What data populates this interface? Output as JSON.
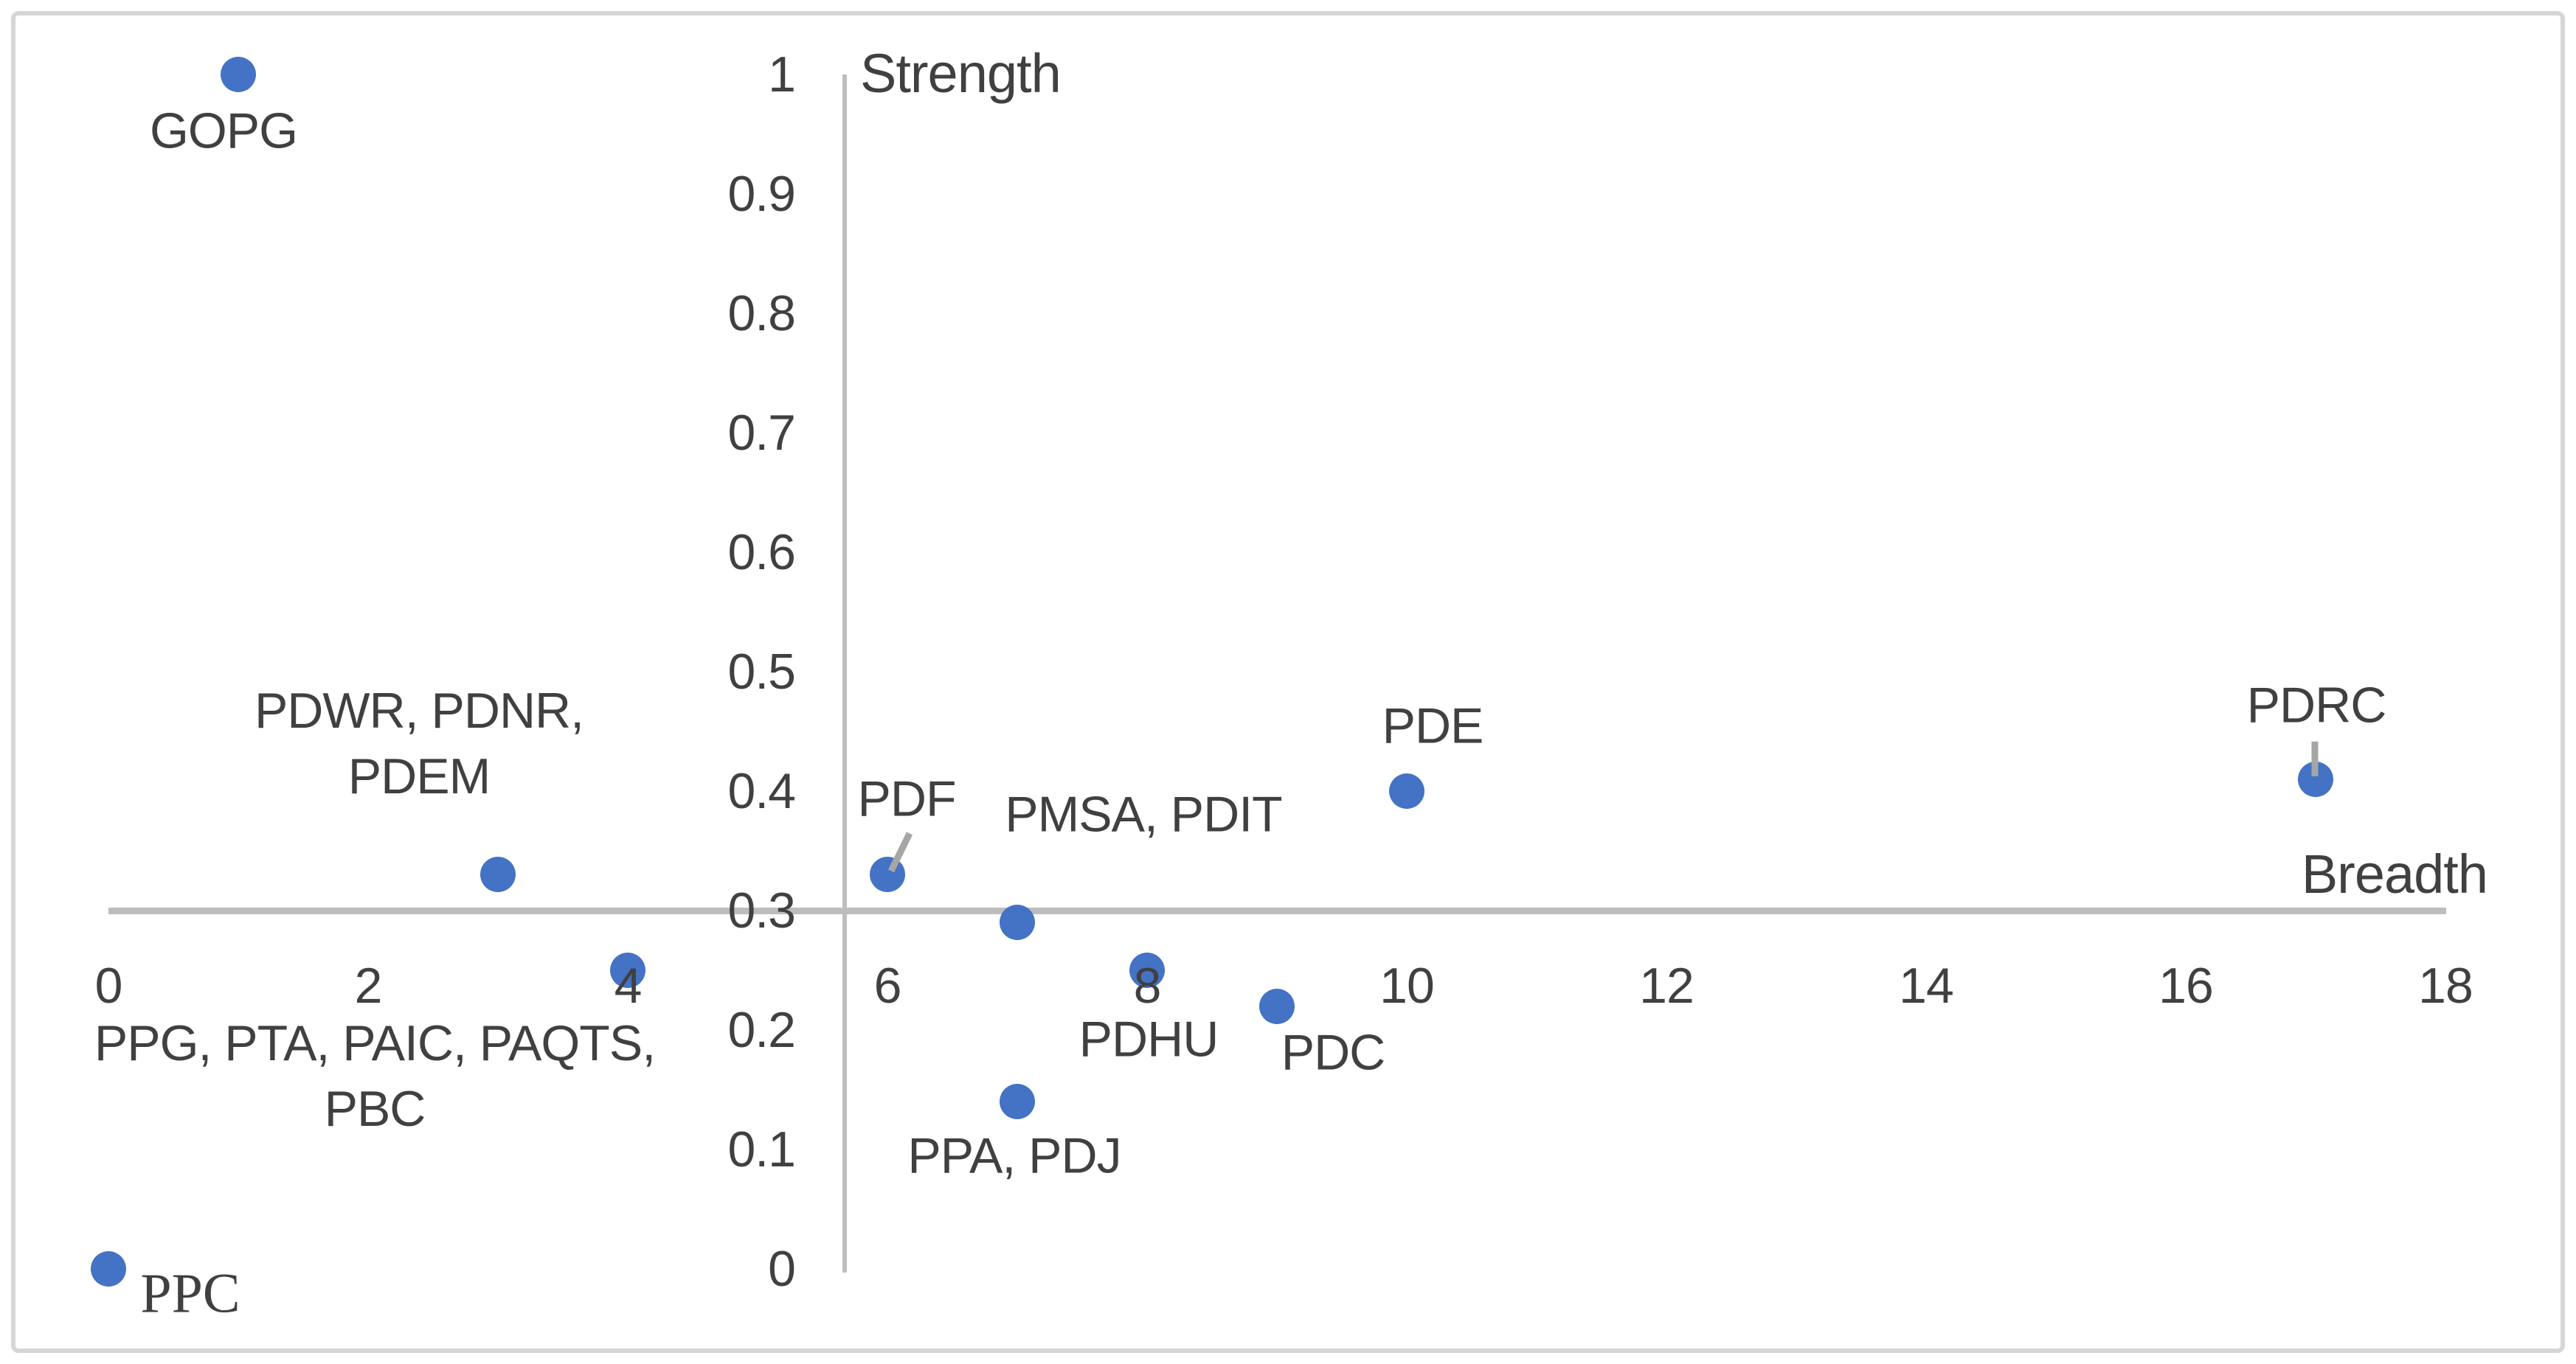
{
  "chart_data": {
    "type": "scatter",
    "title": "",
    "xlabel": "Breadth",
    "ylabel": "Strength",
    "xlim": [
      0,
      18
    ],
    "ylim": [
      0,
      1
    ],
    "grid": false,
    "legend": false,
    "axis_crossing": {
      "x_axis_at_y": 0.3,
      "y_axis_at_x": 5.7
    },
    "x_ticks": [
      "0",
      "2",
      "4",
      "6",
      "8",
      "10",
      "12",
      "14",
      "16",
      "18"
    ],
    "y_ticks": [
      "0",
      "0.1",
      "0.2",
      "0.3",
      "0.4",
      "0.5",
      "0.6",
      "0.7",
      "0.8",
      "0.9",
      "1"
    ],
    "marker_color": "#4472C4",
    "axis_line_color": "#BDBDBD",
    "leader_line_color": "#A6A6A6",
    "text_color": "#404040",
    "points": [
      {
        "id": "gopg",
        "label_lines": [
          "GOPG"
        ],
        "x": 1,
        "y": 1.0
      },
      {
        "id": "pdwr-pdnr-pdem",
        "label_lines": [
          "PDWR, PDNR,",
          "PDEM"
        ],
        "x": 3,
        "y": 0.33
      },
      {
        "id": "ppg-pta-paic-paqts-pbc",
        "label_lines": [
          "PPG, PTA, PAIC, PAQTS,",
          "PBC"
        ],
        "x": 4,
        "y": 0.25
      },
      {
        "id": "ppc",
        "label_lines": [
          "PPC"
        ],
        "x": 0,
        "y": 0.0
      },
      {
        "id": "pdf",
        "label_lines": [
          "PDF"
        ],
        "x": 6,
        "y": 0.33
      },
      {
        "id": "pmsa-pdit",
        "label_lines": [
          "PMSA, PDIT"
        ],
        "x": 7,
        "y": 0.29
      },
      {
        "id": "pdhu",
        "label_lines": [
          "PDHU"
        ],
        "x": 8,
        "y": 0.25
      },
      {
        "id": "ppa-pdj",
        "label_lines": [
          "PPA, PDJ"
        ],
        "x": 7,
        "y": 0.14
      },
      {
        "id": "pdc",
        "label_lines": [
          "PDC"
        ],
        "x": 9,
        "y": 0.22
      },
      {
        "id": "pde",
        "label_lines": [
          "PDE"
        ],
        "x": 10,
        "y": 0.4
      },
      {
        "id": "pdrc",
        "label_lines": [
          "PDRC"
        ],
        "x": 17,
        "y": 0.41
      }
    ]
  }
}
